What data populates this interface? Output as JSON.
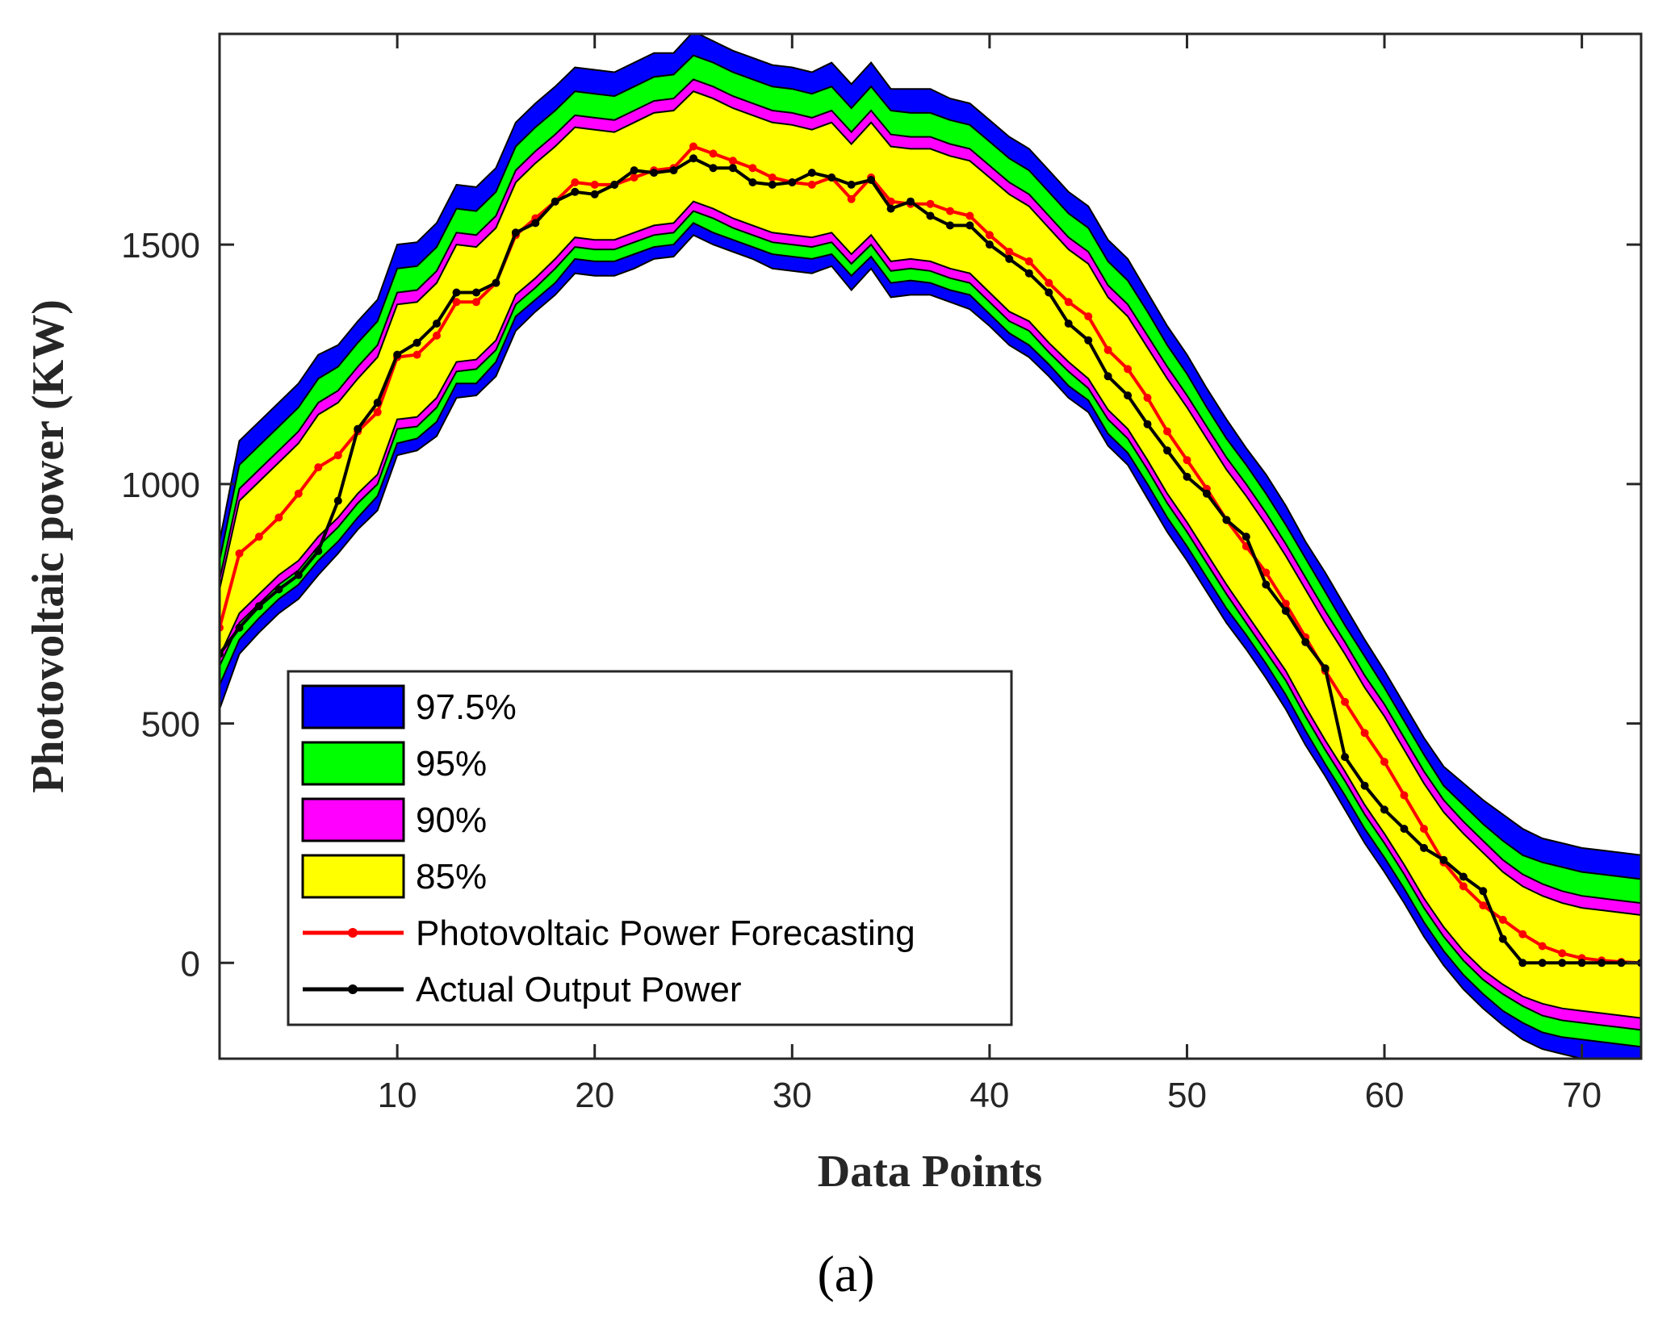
{
  "chart_data": {
    "type": "area",
    "xlabel": "Data Points",
    "ylabel": "Photovoltaic power (KW)",
    "panel_label": "(a)",
    "xlim": [
      1,
      73
    ],
    "ylim": [
      -200,
      1940
    ],
    "xticks": [
      10,
      20,
      30,
      40,
      50,
      60,
      70
    ],
    "yticks": [
      0,
      500,
      1000,
      1500
    ],
    "legend_position": "lower-left",
    "grid": false,
    "x": [
      1,
      2,
      3,
      4,
      5,
      6,
      7,
      8,
      9,
      10,
      11,
      12,
      13,
      14,
      15,
      16,
      17,
      18,
      19,
      20,
      21,
      22,
      23,
      24,
      25,
      26,
      27,
      28,
      29,
      30,
      31,
      32,
      33,
      34,
      35,
      36,
      37,
      38,
      39,
      40,
      41,
      42,
      43,
      44,
      45,
      46,
      47,
      48,
      49,
      50,
      51,
      52,
      53,
      54,
      55,
      56,
      57,
      58,
      59,
      60,
      61,
      62,
      63,
      64,
      65,
      66,
      67,
      68,
      69,
      70,
      71,
      72,
      73
    ],
    "forecast": [
      700,
      855,
      890,
      930,
      980,
      1035,
      1060,
      1110,
      1150,
      1265,
      1270,
      1310,
      1380,
      1380,
      1420,
      1520,
      1555,
      1590,
      1630,
      1625,
      1625,
      1640,
      1655,
      1660,
      1705,
      1690,
      1675,
      1660,
      1640,
      1630,
      1625,
      1640,
      1595,
      1640,
      1590,
      1585,
      1585,
      1570,
      1560,
      1520,
      1485,
      1465,
      1420,
      1380,
      1350,
      1280,
      1240,
      1180,
      1110,
      1050,
      990,
      925,
      870,
      815,
      750,
      680,
      610,
      545,
      480,
      420,
      350,
      280,
      210,
      160,
      120,
      90,
      60,
      35,
      20,
      10,
      5,
      2,
      0
    ],
    "actual": [
      645,
      700,
      745,
      780,
      810,
      860,
      965,
      1115,
      1170,
      1270,
      1295,
      1335,
      1400,
      1400,
      1420,
      1525,
      1545,
      1590,
      1610,
      1605,
      1625,
      1655,
      1650,
      1655,
      1680,
      1660,
      1660,
      1630,
      1625,
      1630,
      1650,
      1640,
      1625,
      1635,
      1575,
      1590,
      1560,
      1540,
      1540,
      1500,
      1470,
      1440,
      1400,
      1335,
      1300,
      1225,
      1185,
      1125,
      1070,
      1015,
      980,
      925,
      890,
      790,
      735,
      670,
      615,
      430,
      370,
      320,
      280,
      240,
      215,
      180,
      150,
      50,
      0,
      0,
      0,
      0,
      0,
      0,
      0
    ],
    "series": [
      {
        "name": "97.5%",
        "color": "#0000ff",
        "lower": [
          530,
          645,
          690,
          730,
          760,
          810,
          855,
          905,
          945,
          1060,
          1070,
          1100,
          1180,
          1185,
          1225,
          1320,
          1360,
          1395,
          1440,
          1435,
          1435,
          1450,
          1470,
          1475,
          1520,
          1500,
          1485,
          1470,
          1450,
          1445,
          1440,
          1455,
          1405,
          1450,
          1390,
          1395,
          1395,
          1380,
          1365,
          1330,
          1290,
          1265,
          1225,
          1180,
          1150,
          1080,
          1040,
          970,
          900,
          840,
          775,
          710,
          655,
          595,
          530,
          455,
          390,
          320,
          250,
          190,
          125,
          55,
          -5,
          -55,
          -95,
          -130,
          -160,
          -180,
          -190,
          -200,
          -205,
          -210,
          -215
        ],
        "upper": [
          880,
          1090,
          1130,
          1170,
          1210,
          1270,
          1290,
          1340,
          1385,
          1500,
          1505,
          1545,
          1625,
          1620,
          1660,
          1755,
          1795,
          1830,
          1870,
          1865,
          1860,
          1880,
          1900,
          1900,
          1945,
          1925,
          1905,
          1890,
          1875,
          1870,
          1860,
          1880,
          1835,
          1880,
          1825,
          1825,
          1825,
          1805,
          1795,
          1760,
          1725,
          1700,
          1655,
          1610,
          1580,
          1510,
          1470,
          1400,
          1330,
          1270,
          1200,
          1135,
          1075,
          1020,
          955,
          880,
          815,
          745,
          675,
          610,
          540,
          470,
          410,
          375,
          340,
          310,
          280,
          260,
          250,
          240,
          235,
          230,
          225
        ]
      },
      {
        "name": "95%",
        "color": "#00ff00",
        "lower": [
          580,
          675,
          720,
          760,
          790,
          840,
          880,
          930,
          975,
          1085,
          1095,
          1130,
          1210,
          1210,
          1255,
          1350,
          1385,
          1420,
          1470,
          1465,
          1465,
          1480,
          1495,
          1500,
          1545,
          1525,
          1510,
          1495,
          1480,
          1475,
          1470,
          1480,
          1435,
          1475,
          1420,
          1425,
          1420,
          1405,
          1395,
          1355,
          1315,
          1290,
          1250,
          1205,
          1175,
          1105,
          1065,
          1000,
          930,
          870,
          805,
          740,
          685,
          625,
          560,
          485,
          415,
          350,
          280,
          220,
          155,
          85,
          25,
          -25,
          -65,
          -100,
          -125,
          -145,
          -155,
          -160,
          -165,
          -170,
          -175
        ],
        "upper": [
          840,
          1040,
          1080,
          1120,
          1160,
          1220,
          1245,
          1295,
          1340,
          1450,
          1455,
          1495,
          1575,
          1570,
          1610,
          1705,
          1745,
          1780,
          1820,
          1815,
          1810,
          1830,
          1850,
          1855,
          1895,
          1880,
          1860,
          1845,
          1830,
          1825,
          1815,
          1830,
          1785,
          1830,
          1780,
          1775,
          1775,
          1760,
          1750,
          1715,
          1680,
          1655,
          1610,
          1565,
          1535,
          1465,
          1425,
          1360,
          1290,
          1230,
          1160,
          1095,
          1040,
          980,
          915,
          845,
          775,
          705,
          640,
          575,
          505,
          435,
          370,
          330,
          290,
          255,
          225,
          210,
          200,
          190,
          185,
          180,
          175
        ]
      },
      {
        "name": "90%",
        "color": "#ff00ff",
        "lower": [
          620,
          710,
          750,
          790,
          820,
          870,
          910,
          960,
          1000,
          1115,
          1120,
          1160,
          1235,
          1240,
          1280,
          1375,
          1410,
          1450,
          1495,
          1490,
          1490,
          1505,
          1520,
          1525,
          1570,
          1555,
          1535,
          1520,
          1505,
          1500,
          1495,
          1505,
          1460,
          1500,
          1445,
          1450,
          1445,
          1430,
          1420,
          1380,
          1340,
          1320,
          1275,
          1235,
          1200,
          1135,
          1095,
          1030,
          960,
          900,
          835,
          770,
          710,
          650,
          590,
          515,
          445,
          380,
          310,
          250,
          185,
          115,
          55,
          5,
          -35,
          -65,
          -90,
          -110,
          -120,
          -125,
          -130,
          -135,
          -140
        ],
        "upper": [
          800,
          990,
          1030,
          1070,
          1110,
          1170,
          1195,
          1245,
          1290,
          1400,
          1405,
          1445,
          1525,
          1520,
          1560,
          1655,
          1695,
          1730,
          1770,
          1765,
          1760,
          1780,
          1800,
          1805,
          1845,
          1830,
          1810,
          1795,
          1780,
          1775,
          1765,
          1780,
          1735,
          1780,
          1730,
          1725,
          1725,
          1710,
          1700,
          1665,
          1630,
          1605,
          1560,
          1515,
          1485,
          1415,
          1375,
          1310,
          1245,
          1185,
          1120,
          1055,
          1000,
          940,
          875,
          805,
          735,
          670,
          600,
          540,
          470,
          400,
          340,
          295,
          255,
          215,
          185,
          165,
          150,
          140,
          135,
          130,
          125
        ]
      },
      {
        "name": "85%",
        "color": "#ffff00",
        "lower": [
          640,
          730,
          770,
          810,
          840,
          890,
          930,
          980,
          1020,
          1135,
          1140,
          1180,
          1255,
          1260,
          1300,
          1395,
          1430,
          1470,
          1515,
          1510,
          1510,
          1525,
          1540,
          1545,
          1590,
          1575,
          1555,
          1540,
          1525,
          1520,
          1515,
          1525,
          1480,
          1520,
          1465,
          1470,
          1465,
          1450,
          1440,
          1400,
          1360,
          1340,
          1295,
          1255,
          1220,
          1155,
          1115,
          1050,
          980,
          920,
          855,
          790,
          730,
          670,
          610,
          535,
          465,
          400,
          330,
          270,
          205,
          135,
          75,
          25,
          -15,
          -45,
          -70,
          -85,
          -95,
          -100,
          -105,
          -110,
          -115
        ],
        "upper": [
          780,
          965,
          1005,
          1045,
          1085,
          1145,
          1170,
          1220,
          1265,
          1375,
          1380,
          1420,
          1500,
          1495,
          1535,
          1630,
          1670,
          1705,
          1745,
          1740,
          1735,
          1755,
          1775,
          1780,
          1820,
          1805,
          1785,
          1770,
          1755,
          1750,
          1740,
          1755,
          1710,
          1755,
          1705,
          1700,
          1700,
          1685,
          1675,
          1640,
          1605,
          1580,
          1535,
          1490,
          1460,
          1390,
          1350,
          1285,
          1220,
          1160,
          1095,
          1030,
          975,
          915,
          850,
          780,
          710,
          645,
          575,
          515,
          445,
          375,
          315,
          270,
          230,
          190,
          160,
          140,
          125,
          115,
          110,
          105,
          100
        ]
      }
    ],
    "legend": [
      {
        "label": "97.5%",
        "kind": "patch",
        "color": "#0000ff"
      },
      {
        "label": "95%",
        "kind": "patch",
        "color": "#00ff00"
      },
      {
        "label": "90%",
        "kind": "patch",
        "color": "#ff00ff"
      },
      {
        "label": "85%",
        "kind": "patch",
        "color": "#ffff00"
      },
      {
        "label": "Photovoltaic Power Forecasting",
        "kind": "line",
        "color": "#ff0000"
      },
      {
        "label": "Actual Output Power",
        "kind": "line",
        "color": "#000000"
      }
    ]
  }
}
